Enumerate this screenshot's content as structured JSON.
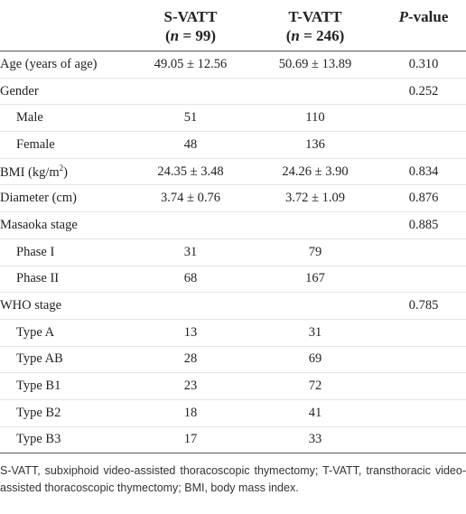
{
  "header": {
    "columns": [
      {
        "lines": [
          [
            {
              "t": ""
            }
          ]
        ]
      },
      {
        "lines": [
          [
            {
              "t": "S-VATT"
            }
          ],
          [
            {
              "t": "("
            },
            {
              "t": "n",
              "i": true
            },
            {
              "t": " = 99)"
            }
          ]
        ]
      },
      {
        "lines": [
          [
            {
              "t": "T-VATT"
            }
          ],
          [
            {
              "t": "("
            },
            {
              "t": "n",
              "i": true
            },
            {
              "t": " = 246)"
            }
          ]
        ]
      },
      {
        "lines": [
          [
            {
              "t": "P",
              "i": true
            },
            {
              "t": "-value"
            }
          ]
        ]
      }
    ]
  },
  "table": {
    "rows": [
      {
        "label": [
          {
            "t": "Age (years of age)"
          }
        ],
        "indent": false,
        "cells": [
          "49.05 ± 12.56",
          "50.69 ± 13.89",
          "0.310"
        ]
      },
      {
        "label": [
          {
            "t": "Gender"
          }
        ],
        "indent": false,
        "cells": [
          null,
          null,
          "0.252"
        ]
      },
      {
        "label": [
          {
            "t": "Male"
          }
        ],
        "indent": true,
        "cells": [
          "51",
          "110",
          null
        ]
      },
      {
        "label": [
          {
            "t": "Female"
          }
        ],
        "indent": true,
        "cells": [
          "48",
          "136",
          null
        ]
      },
      {
        "label": [
          {
            "t": "BMI (kg/m"
          },
          {
            "t": "2",
            "sup": true
          },
          {
            "t": ")"
          }
        ],
        "indent": false,
        "cells": [
          "24.35 ± 3.48",
          "24.26 ± 3.90",
          "0.834"
        ]
      },
      {
        "label": [
          {
            "t": "Diameter (cm)"
          }
        ],
        "indent": false,
        "cells": [
          "3.74 ± 0.76",
          "3.72 ± 1.09",
          "0.876"
        ]
      },
      {
        "label": [
          {
            "t": "Masaoka stage"
          }
        ],
        "indent": false,
        "cells": [
          null,
          null,
          "0.885"
        ]
      },
      {
        "label": [
          {
            "t": "Phase I"
          }
        ],
        "indent": true,
        "cells": [
          "31",
          "79",
          null
        ]
      },
      {
        "label": [
          {
            "t": "Phase II"
          }
        ],
        "indent": true,
        "cells": [
          "68",
          "167",
          null
        ]
      },
      {
        "label": [
          {
            "t": "WHO stage"
          }
        ],
        "indent": false,
        "cells": [
          null,
          null,
          "0.785"
        ]
      },
      {
        "label": [
          {
            "t": "Type A"
          }
        ],
        "indent": true,
        "cells": [
          "13",
          "31",
          null
        ]
      },
      {
        "label": [
          {
            "t": "Type AB"
          }
        ],
        "indent": true,
        "cells": [
          "28",
          "69",
          null
        ]
      },
      {
        "label": [
          {
            "t": "Type B1"
          }
        ],
        "indent": true,
        "cells": [
          "23",
          "72",
          null
        ]
      },
      {
        "label": [
          {
            "t": "Type B2"
          }
        ],
        "indent": true,
        "cells": [
          "18",
          "41",
          null
        ]
      },
      {
        "label": [
          {
            "t": "Type B3"
          }
        ],
        "indent": true,
        "cells": [
          "17",
          "33",
          null
        ]
      }
    ]
  },
  "footnote": "S-VATT, subxiphoid video-assisted thoracoscopic thymectomy; T-VATT, transthoracic video-assisted thoracoscopic thymectomy; BMI, body mass index."
}
